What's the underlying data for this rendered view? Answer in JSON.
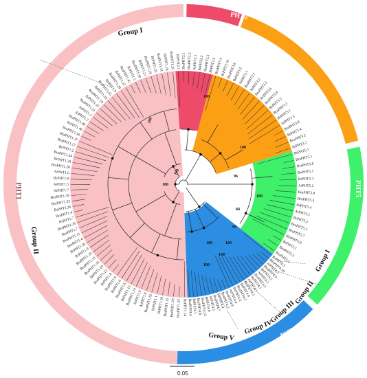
{
  "families": [
    {
      "key": "pht1",
      "name": "PHT1",
      "color": "#f9c1c4"
    },
    {
      "key": "pht2",
      "name": "PHT2",
      "color": "#ee4a6a"
    },
    {
      "key": "pht3",
      "name": "PHT3",
      "color": "#fb9f14"
    },
    {
      "key": "pht5",
      "name": "PHT5",
      "color": "#3ef06a"
    },
    {
      "key": "pht4",
      "name": "PHT4",
      "color": "#2b8ee3"
    }
  ],
  "groups": {
    "pht1_group1": "Group I",
    "pht1_group2": "Group II",
    "pht4_group1": "Group I",
    "pht4_group2": "Group II",
    "pht4_group3": "Group III",
    "pht4_group4": "Group IV",
    "pht4_group5": "Group V"
  },
  "support_values": [
    "100",
    "100",
    "100",
    "100",
    "100",
    "96",
    "100",
    "84",
    "99",
    "100",
    "100",
    "100",
    "100"
  ],
  "scale_label": "0.05",
  "leaf_labels": {
    "pht1": [
      "BrPHT1.14",
      "BraPHT1.35",
      "BraPHT1.29",
      "BraPHT1.15",
      "BrPHT1.16",
      "BrPHT1.1",
      "BraPHT1.16",
      "AtPHT1.8",
      "AtPHT1.9",
      "BraPHT1.13",
      "BrPHT1.13",
      "BraPHT1.6",
      "BrPHT1.6",
      "BraPHT1.8",
      "BrPHT1.8",
      "BraPHT1.22",
      "BrPHT1.20",
      "BraPHT1.34",
      "BraPHT1.33",
      "BraPHT1.10",
      "BrPHT1.9",
      "BrPHT1.30",
      "BraPHT1.4",
      "BraPHT1.11",
      "BraPHT1.7",
      "BraPHT1.29",
      "BrPHT1.7",
      "BraPHT1.4",
      "BrPHT1.26",
      "BraPHT1.23",
      "BraPHT1.39",
      "AtPHT1.7",
      "AtPHT1.5",
      "BrPHT1.8",
      "AtPHT1.6",
      "BraPHT1.28",
      "BrPHT1.29",
      "BraPHT1.44",
      "BrPHT1.2",
      "BraPHT1.27",
      "BraPHT1.37",
      "BraPHT1.36",
      "BrPHT1.46",
      "BraPHT1.40",
      "AtPHT1.2",
      "AtPHT1.3",
      "BraPHT1.21",
      "BrPHT1.15",
      "BraPHT1.19",
      "BrPHT1.18",
      "BraPHT1.45",
      "BrPHT1.9",
      "BraPHT1.20",
      "BrPHT1.12",
      "BraPHT1.42",
      "BrPHT1.5",
      "BraPHT1.38",
      "BrPHT1.21",
      "BraPHT1.26",
      "BrPHT1.22",
      "BraPHT1.31",
      "BrPHT1.24",
      "BraPHT1.25"
    ],
    "pht2": [
      "BrPHT2.1",
      "BraPHT2.1",
      "BraPHT2.2",
      "AtPHT2.1",
      "BrPHT2.2",
      "BraPHT2.3",
      "BrPHT2.4"
    ],
    "pht3": [
      "BraPHT3.4",
      "BrPHT3.10",
      "BraPHT3.6",
      "BrPHT3.5",
      "AtPHT3.1",
      "BraPHT3.7",
      "AtPHT3.2",
      "BraPHT3.3",
      "BrPHT3.6",
      "BraPHT3.9",
      "BrPHT3.3",
      "BraPHT3.1",
      "BrPHT3.1",
      "AtPHT3.3",
      "BraPHT3.8",
      "BrPHT3.4",
      "BraPHT3.2",
      "BrPHT3.2"
    ],
    "pht5": [
      "BrPHT5.1",
      "BraPHT5.1",
      "BraPHT5.6",
      "BoPHT5.1",
      "BrPHT5.3",
      "AtPHT5.2",
      "BraPHT5.8",
      "BraPHT5.4",
      "BrPHT5.4",
      "AtPHT5.1",
      "BrPHT5.2",
      "BraPHT5.3",
      "BraPHT5.7",
      "BraPHT5.9",
      "BrPHT5.5",
      "BraPHT5.2",
      "BraPHT5.5"
    ],
    "pht4": [
      "BrPHT4.3",
      "BraPHT4.10",
      "AtPHT4.3",
      "BraPHT4.9",
      "BrPHT4.5",
      "AtPHT4.2",
      "BraPHT4.1",
      "BrPHT4.1",
      "AtPHT4.1",
      "BraPHT4.5",
      "BrPHT4.6",
      "BraPHT4.3",
      "BrPHT4.2",
      "AtPHT4.4",
      "BraPHT4.8",
      "BraPHT4.2",
      "BrPHT4.4",
      "BraPHT4.7",
      "AtPHT4.5",
      "BrPHT4.6",
      "BraPHT4.12",
      "BraPHT4.6",
      "BrPHT4.1",
      "BraPHT4.4"
    ]
  }
}
